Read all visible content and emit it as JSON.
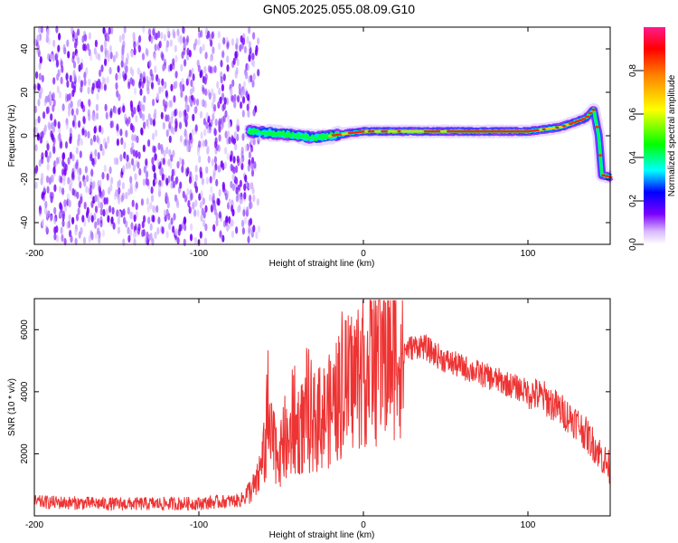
{
  "title": "GN05.2025.055.08.09.G10",
  "chart_data": [
    {
      "type": "heatmap",
      "xlabel": "Height of straight line (km)",
      "ylabel": "Frequency (Hz)",
      "xlim": [
        -200,
        150
      ],
      "ylim": [
        -50,
        50
      ],
      "xticks": [
        "-200",
        "-100",
        "0",
        "100"
      ],
      "yticks": [
        "-40",
        "-20",
        "0",
        "20",
        "40"
      ],
      "colorbar": {
        "label": "Normalized spectral amplitude",
        "range": [
          0,
          1
        ],
        "ticks": [
          "0.0",
          "0.2",
          "0.4",
          "0.6",
          "0.8"
        ]
      },
      "noise_region_x": [
        -200,
        -70
      ],
      "signal_track": [
        {
          "x": -70,
          "y": 2
        },
        {
          "x": -50,
          "y": 1
        },
        {
          "x": -30,
          "y": -1
        },
        {
          "x": -10,
          "y": 1
        },
        {
          "x": 0,
          "y": 2
        },
        {
          "x": 50,
          "y": 2
        },
        {
          "x": 100,
          "y": 2
        },
        {
          "x": 120,
          "y": 4
        },
        {
          "x": 135,
          "y": 8
        },
        {
          "x": 140,
          "y": 12
        },
        {
          "x": 143,
          "y": 0
        },
        {
          "x": 145,
          "y": -18
        },
        {
          "x": 150,
          "y": -19
        }
      ]
    },
    {
      "type": "line",
      "xlabel": "Height of straight line (km)",
      "ylabel": "SNR (10 * v/v)",
      "xlim": [
        -200,
        150
      ],
      "ylim": [
        0,
        7000
      ],
      "xticks": [
        "-200",
        "-100",
        "0",
        "100"
      ],
      "yticks": [
        "2000",
        "4000",
        "6000"
      ],
      "series": [
        {
          "color": "#ee3333",
          "points": [
            {
              "x": -200,
              "y": 450
            },
            {
              "x": -150,
              "y": 380
            },
            {
              "x": -100,
              "y": 400
            },
            {
              "x": -75,
              "y": 500
            },
            {
              "x": -65,
              "y": 1000
            },
            {
              "x": -58,
              "y": 2500
            },
            {
              "x": -50,
              "y": 2000
            },
            {
              "x": -40,
              "y": 2800
            },
            {
              "x": -30,
              "y": 3000
            },
            {
              "x": -20,
              "y": 3400
            },
            {
              "x": -10,
              "y": 4200
            },
            {
              "x": 0,
              "y": 4800
            },
            {
              "x": 10,
              "y": 5000
            },
            {
              "x": 20,
              "y": 5300
            },
            {
              "x": 35,
              "y": 5500
            },
            {
              "x": 50,
              "y": 5000
            },
            {
              "x": 70,
              "y": 4600
            },
            {
              "x": 90,
              "y": 4200
            },
            {
              "x": 110,
              "y": 3800
            },
            {
              "x": 130,
              "y": 3000
            },
            {
              "x": 140,
              "y": 2300
            },
            {
              "x": 150,
              "y": 1500
            }
          ]
        }
      ]
    }
  ]
}
